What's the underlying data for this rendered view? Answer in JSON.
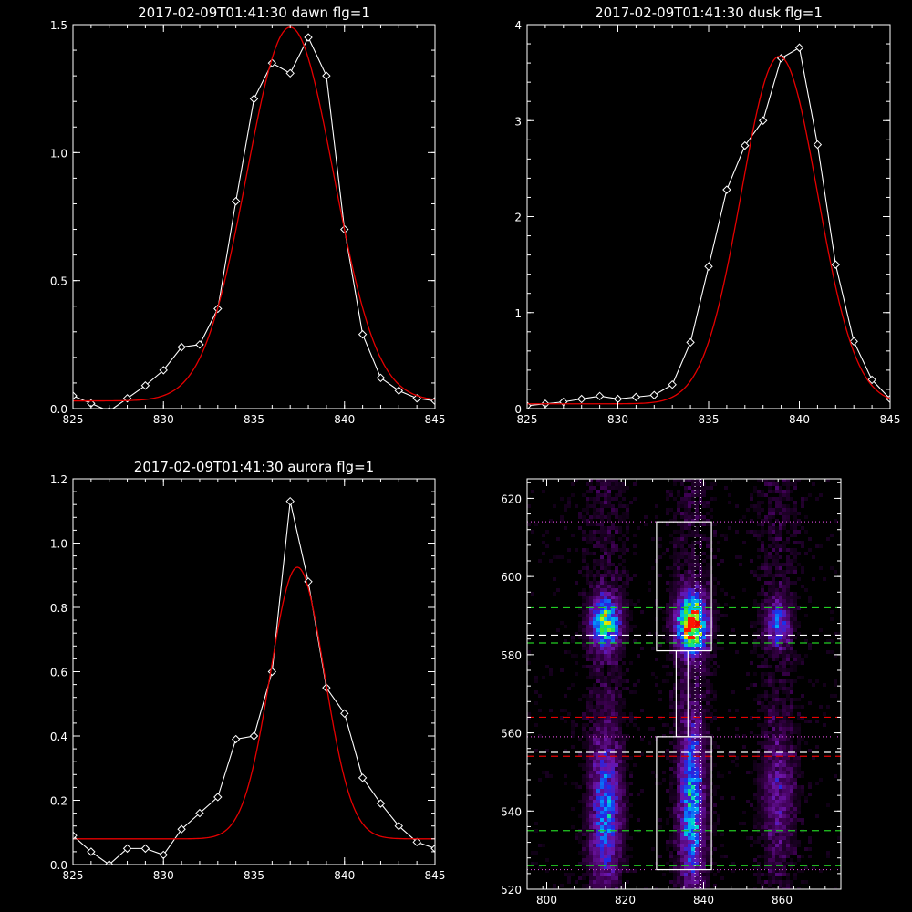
{
  "chart_data": [
    {
      "type": "line",
      "title": "2017-02-09T01:41:30 dawn flg=1",
      "xlim": [
        825,
        845
      ],
      "ylim": [
        0,
        1.5
      ],
      "xticks": [
        "825",
        "830",
        "835",
        "840",
        "845"
      ],
      "yticks": [
        "0.0",
        "0.5",
        "1.0",
        "1.5"
      ],
      "series": [
        {
          "color": "#ffffff",
          "marker": "diamond",
          "x": [
            825,
            826,
            827,
            828,
            829,
            830,
            831,
            832,
            833,
            834,
            835,
            836,
            837,
            838,
            839,
            840,
            841,
            842,
            843,
            844,
            845
          ],
          "y": [
            0.05,
            0.02,
            -0.01,
            0.04,
            0.09,
            0.15,
            0.24,
            0.25,
            0.39,
            0.81,
            1.21,
            1.35,
            1.31,
            1.45,
            1.3,
            0.7,
            0.29,
            0.12,
            0.07,
            0.04,
            0.03
          ]
        },
        {
          "color": "#e60000",
          "marker": "none",
          "fit": {
            "amplitude": 1.46,
            "center": 837.0,
            "sigma": 2.4,
            "offset": 0.03
          }
        }
      ]
    },
    {
      "type": "line",
      "title": "2017-02-09T01:41:30 dusk flg=1",
      "xlim": [
        825,
        845
      ],
      "ylim": [
        0,
        4
      ],
      "xticks": [
        "825",
        "830",
        "835",
        "840",
        "845"
      ],
      "yticks": [
        "0",
        "1",
        "2",
        "3",
        "4"
      ],
      "series": [
        {
          "color": "#ffffff",
          "marker": "diamond",
          "x": [
            825,
            826,
            827,
            828,
            829,
            830,
            831,
            832,
            833,
            834,
            835,
            836,
            837,
            838,
            839,
            840,
            841,
            842,
            843,
            844,
            845
          ],
          "y": [
            0.03,
            0.05,
            0.07,
            0.1,
            0.13,
            0.1,
            0.12,
            0.14,
            0.25,
            0.69,
            1.48,
            2.28,
            2.74,
            3.0,
            3.65,
            3.76,
            2.75,
            1.5,
            0.7,
            0.3,
            0.1
          ]
        },
        {
          "color": "#e60000",
          "marker": "none",
          "fit": {
            "amplitude": 3.62,
            "center": 838.9,
            "sigma": 2.1,
            "offset": 0.05
          }
        }
      ]
    },
    {
      "type": "line",
      "title": "2017-02-09T01:41:30 aurora flg=1",
      "xlim": [
        825,
        845
      ],
      "ylim": [
        0,
        1.2
      ],
      "xticks": [
        "825",
        "830",
        "835",
        "840",
        "845"
      ],
      "yticks": [
        "0.0",
        "0.2",
        "0.4",
        "0.6",
        "0.8",
        "1.0",
        "1.2"
      ],
      "series": [
        {
          "color": "#ffffff",
          "marker": "diamond",
          "x": [
            825,
            826,
            827,
            828,
            829,
            830,
            831,
            832,
            833,
            834,
            835,
            836,
            837,
            838,
            839,
            840,
            841,
            842,
            843,
            844,
            845
          ],
          "y": [
            0.09,
            0.04,
            0.0,
            0.05,
            0.05,
            0.03,
            0.11,
            0.16,
            0.21,
            0.39,
            0.4,
            0.6,
            1.13,
            0.88,
            0.55,
            0.47,
            0.27,
            0.19,
            0.12,
            0.07,
            0.05
          ]
        },
        {
          "color": "#e60000",
          "marker": "none",
          "fit": {
            "amplitude": 0.845,
            "center": 837.4,
            "sigma": 1.5,
            "offset": 0.08
          }
        }
      ]
    },
    {
      "type": "heatmap",
      "xlim": [
        795,
        875
      ],
      "ylim": [
        520,
        625
      ],
      "xticks": [
        "800",
        "820",
        "840",
        "860"
      ],
      "yticks": [
        "520",
        "540",
        "560",
        "580",
        "600",
        "620"
      ],
      "clusters": [
        {
          "x": 815,
          "y": 588,
          "sx": 2.5,
          "sy": 4.5,
          "peak": 0.68
        },
        {
          "x": 837,
          "y": 588,
          "sx": 2.5,
          "sy": 5,
          "peak": 0.98
        },
        {
          "x": 859,
          "y": 588,
          "sx": 2.0,
          "sy": 4,
          "peak": 0.4
        },
        {
          "x": 815,
          "y": 540,
          "sx": 2.5,
          "sy": 12,
          "peak": 0.42
        },
        {
          "x": 837,
          "y": 542,
          "sx": 2.0,
          "sy": 14,
          "peak": 0.5
        },
        {
          "x": 859,
          "y": 545,
          "sx": 2.5,
          "sy": 10,
          "peak": 0.2
        }
      ],
      "boxes": [
        {
          "x0": 828,
          "x1": 842,
          "y0": 581,
          "y1": 614
        },
        {
          "x0": 828,
          "x1": 842,
          "y0": 525,
          "y1": 559
        },
        {
          "x0": 833,
          "x1": 836,
          "y0": 559,
          "y1": 581
        }
      ],
      "hlines": [
        {
          "y": 614,
          "color": "#cc44cc",
          "style": "dotted"
        },
        {
          "y": 592,
          "color": "#22cc22",
          "style": "dashed"
        },
        {
          "y": 585,
          "color": "#ffffff",
          "style": "dashed"
        },
        {
          "y": 583,
          "color": "#22cc22",
          "style": "dashed"
        },
        {
          "y": 564,
          "color": "#e60000",
          "style": "dashed"
        },
        {
          "y": 559,
          "color": "#cc44cc",
          "style": "dotted"
        },
        {
          "y": 555,
          "color": "#ffffff",
          "style": "dashed"
        },
        {
          "y": 554,
          "color": "#e60000",
          "style": "dashed"
        },
        {
          "y": 535,
          "color": "#22cc22",
          "style": "dashed"
        },
        {
          "y": 526,
          "color": "#22cc22",
          "style": "dashed"
        },
        {
          "y": 525,
          "color": "#cc44cc",
          "style": "dotted"
        }
      ],
      "vlines": [
        {
          "x": 837.8,
          "color": "#ffffff",
          "style": "dotted"
        },
        {
          "x": 839.3,
          "color": "#ffffff",
          "style": "dotted"
        }
      ],
      "peak_marker": {
        "x": 838.5,
        "y": 588,
        "color": "#e60000"
      }
    }
  ]
}
